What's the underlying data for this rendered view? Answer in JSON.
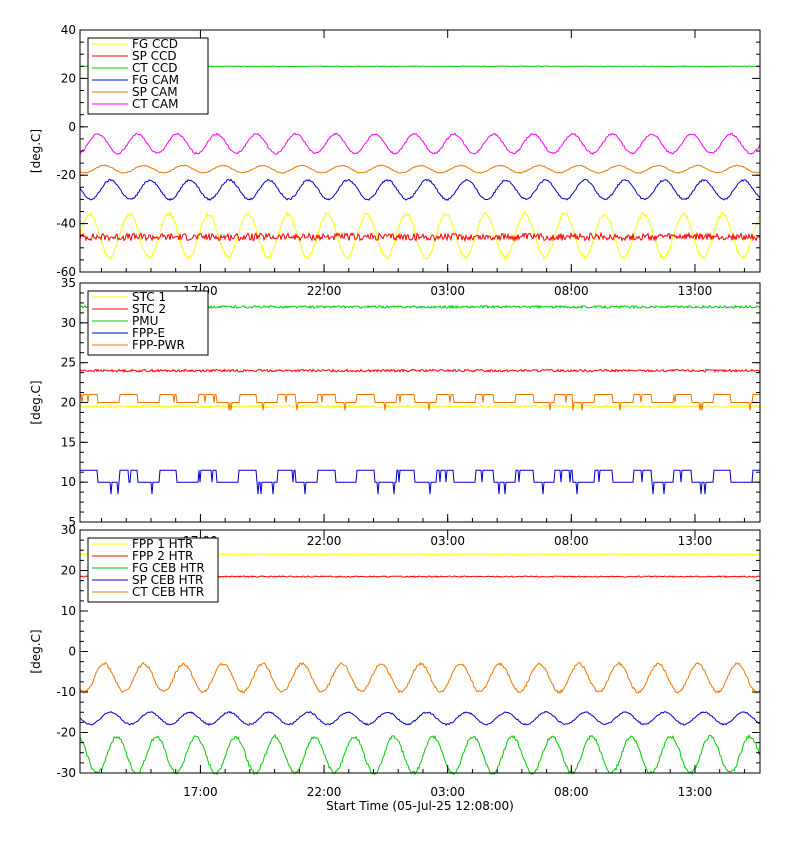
{
  "figure": {
    "xlabel": "Start Time (05-Jul-25 12:08:00)",
    "x_tick_labels": [
      "17:00",
      "22:00",
      "03:00",
      "08:00",
      "13:00"
    ]
  },
  "chart_data": [
    {
      "type": "line",
      "ylabel": "[deg.C]",
      "ylim": [
        -60,
        40
      ],
      "y_ticks": [
        -60,
        -40,
        -20,
        0,
        20,
        40
      ],
      "x_hours": [
        0,
        27.5
      ],
      "x_ticks_hours": [
        4.87,
        9.87,
        14.87,
        19.87,
        24.87
      ],
      "x_tick_labels": [
        "17:00",
        "22:00",
        "03:00",
        "08:00",
        "13:00"
      ],
      "legend_position": "top-left",
      "series": [
        {
          "name": "FG CCD",
          "color": "#ffff00",
          "shape": "sine",
          "base": -45,
          "amp": 9,
          "period": 1.6
        },
        {
          "name": "SP CCD",
          "color": "#ff0000",
          "shape": "noisy",
          "base": -45.5,
          "amp": 1.5,
          "period": 1.6
        },
        {
          "name": "CT CCD",
          "color": "#00cc00",
          "shape": "flat",
          "base": 25,
          "amp": 0,
          "period": 1
        },
        {
          "name": "FG CAM",
          "color": "#0000cc",
          "shape": "sine",
          "base": -26,
          "amp": 4,
          "period": 1.6
        },
        {
          "name": "SP CAM",
          "color": "#ee7700",
          "shape": "sine",
          "base": -17.5,
          "amp": 1.5,
          "period": 1.6
        },
        {
          "name": "CT CAM",
          "color": "#ff00ff",
          "shape": "sine",
          "base": -7,
          "amp": 4,
          "period": 1.6
        }
      ]
    },
    {
      "type": "line",
      "ylabel": "[deg.C]",
      "ylim": [
        5,
        35
      ],
      "y_ticks": [
        5,
        10,
        15,
        20,
        25,
        30,
        35
      ],
      "x_hours": [
        0,
        27.5
      ],
      "x_ticks_hours": [
        4.87,
        9.87,
        14.87,
        19.87,
        24.87
      ],
      "x_tick_labels": [
        "17:00",
        "22:00",
        "03:00",
        "08:00",
        "13:00"
      ],
      "legend_position": "top-left",
      "series": [
        {
          "name": "STC 1",
          "color": "#ffff00",
          "shape": "flat",
          "base": 19.5,
          "amp": 0,
          "period": 1
        },
        {
          "name": "STC 2",
          "color": "#ff0000",
          "shape": "flat",
          "base": 24,
          "amp": 0,
          "period": 1
        },
        {
          "name": "PMU",
          "color": "#00cc00",
          "shape": "flat",
          "base": 32,
          "amp": 0,
          "period": 1
        },
        {
          "name": "FPP-E",
          "color": "#0000cc",
          "shape": "step",
          "base": 10,
          "amp": 1.5,
          "period": 1.6
        },
        {
          "name": "FPP-PWR",
          "color": "#ee7700",
          "shape": "step",
          "base": 20,
          "amp": 1,
          "period": 1.6
        }
      ]
    },
    {
      "type": "line",
      "ylabel": "[deg.C]",
      "ylim": [
        -30,
        30
      ],
      "y_ticks": [
        -30,
        -20,
        -10,
        0,
        10,
        20,
        30
      ],
      "x_hours": [
        0,
        27.5
      ],
      "x_ticks_hours": [
        4.87,
        9.87,
        14.87,
        19.87,
        24.87
      ],
      "x_tick_labels": [
        "17:00",
        "22:00",
        "03:00",
        "08:00",
        "13:00"
      ],
      "legend_position": "top-left",
      "series": [
        {
          "name": "FPP 1 HTR",
          "color": "#ffff00",
          "shape": "flat",
          "base": 24,
          "amp": 0,
          "period": 1
        },
        {
          "name": "FPP 2 HTR",
          "color": "#ff0000",
          "shape": "flat",
          "base": 18.5,
          "amp": 0,
          "period": 1
        },
        {
          "name": "FG CEB HTR",
          "color": "#00cc00",
          "shape": "sine",
          "base": -25.5,
          "amp": 4.5,
          "period": 1.6
        },
        {
          "name": "SP CEB HTR",
          "color": "#0000cc",
          "shape": "sine",
          "base": -16.5,
          "amp": 1.5,
          "period": 1.6
        },
        {
          "name": "CT CEB HTR",
          "color": "#ee7700",
          "shape": "sine",
          "base": -6.5,
          "amp": 3.5,
          "period": 1.6
        }
      ]
    }
  ]
}
